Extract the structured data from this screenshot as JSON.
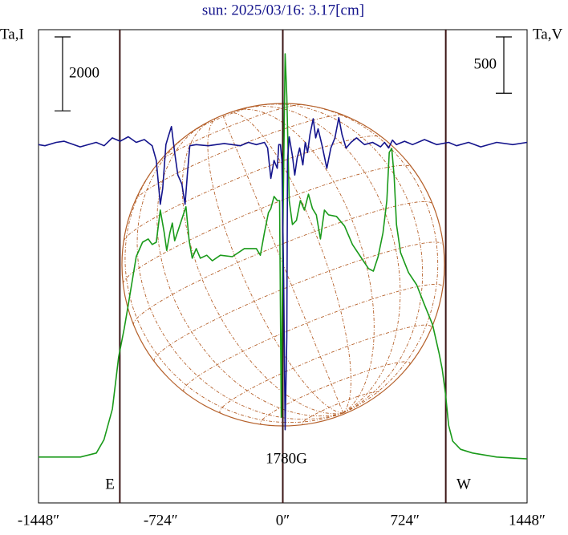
{
  "chart_data": {
    "type": "line",
    "title": "sun: 2025/03/16: 3.17[cm]",
    "y_label": "Ta,I",
    "y2_label": "Ta,V",
    "xlim": [
      -1448,
      1448
    ],
    "xticks": [
      {
        "value": -1448,
        "label": "-1448″"
      },
      {
        "value": -724,
        "label": "-724″"
      },
      {
        "value": 0,
        "label": "0″"
      },
      {
        "value": 724,
        "label": "724″"
      },
      {
        "value": 1448,
        "label": "1448″"
      }
    ],
    "ylim": [
      0,
      12800
    ],
    "y2lim": [
      -3200,
      1000
    ],
    "grid": false,
    "vlines": [
      -966,
      0,
      966
    ],
    "vline_color": "#3a1414",
    "scale_bars": [
      {
        "value": 2000,
        "axis": "y"
      },
      {
        "value": 500,
        "axis": "y2"
      }
    ],
    "annotations": [
      "E",
      "W",
      "1780G"
    ],
    "series": [
      {
        "color": "#1a9a1a",
        "axis": "y",
        "x": [
          -1448,
          -1200,
          -1105,
          -1060,
          -1010,
          -973,
          -940,
          -916,
          -869,
          -831,
          -798,
          -774,
          -750,
          -726,
          -703,
          -688,
          -669,
          -655,
          -641,
          -622,
          -593,
          -574,
          -555,
          -537,
          -513,
          -489,
          -451,
          -418,
          -370,
          -299,
          -228,
          -157,
          -133,
          -109,
          -85,
          -71,
          -52,
          -33,
          -19,
          -9,
          0,
          14,
          24,
          38,
          57,
          81,
          104,
          128,
          152,
          176,
          199,
          223,
          247,
          271,
          318,
          366,
          413,
          461,
          508,
          537,
          565,
          594,
          617,
          631,
          646,
          660,
          674,
          698,
          745,
          793,
          840,
          888,
          926,
          945,
          964,
          983,
          1007,
          1054,
          1125,
          1268,
          1448
        ],
        "values": [
          1240,
          1240,
          1350,
          1710,
          2540,
          3950,
          4710,
          5360,
          6660,
          7050,
          7140,
          6990,
          7050,
          7920,
          7310,
          6830,
          7310,
          7570,
          7090,
          7350,
          7750,
          8010,
          7090,
          6620,
          6880,
          6620,
          6700,
          6550,
          6700,
          6660,
          6880,
          6880,
          6700,
          7310,
          7850,
          7960,
          8290,
          8180,
          8180,
          2320,
          7090,
          12150,
          11000,
          8180,
          7530,
          7640,
          8180,
          7920,
          8350,
          7960,
          7790,
          7140,
          7920,
          7790,
          7750,
          7490,
          6990,
          6660,
          6340,
          6270,
          6660,
          7310,
          8180,
          9480,
          9590,
          8830,
          7530,
          6770,
          6230,
          5900,
          5360,
          4820,
          4060,
          3620,
          2970,
          2100,
          1670,
          1450,
          1350,
          1240,
          1190
        ]
      },
      {
        "color": "#14148c",
        "axis": "y2",
        "x": [
          -1448,
          -1410,
          -1343,
          -1296,
          -1201,
          -1106,
          -1059,
          -1011,
          -964,
          -916,
          -869,
          -821,
          -774,
          -750,
          -726,
          -712,
          -693,
          -679,
          -660,
          -641,
          -622,
          -598,
          -579,
          -565,
          -551,
          -513,
          -442,
          -347,
          -252,
          -204,
          -157,
          -109,
          -90,
          -71,
          -52,
          -33,
          -24,
          -14,
          -5,
          5,
          14,
          24,
          28,
          38,
          57,
          71,
          85,
          100,
          119,
          133,
          147,
          161,
          180,
          195,
          209,
          233,
          261,
          285,
          309,
          332,
          351,
          375,
          404,
          437,
          484,
          532,
          579,
          603,
          627,
          650,
          674,
          722,
          769,
          840,
          912,
          983,
          1030,
          1101,
          1173,
          1268,
          1363,
          1448
        ],
        "values": [
          -20,
          -30,
          0,
          10,
          -40,
          0,
          -30,
          40,
          10,
          50,
          0,
          25,
          -30,
          -160,
          -550,
          -410,
          -20,
          50,
          140,
          -90,
          -290,
          -370,
          -550,
          -270,
          -30,
          -20,
          -30,
          -10,
          -30,
          0,
          -20,
          0,
          -50,
          -320,
          -160,
          -230,
          -20,
          -20,
          -160,
          -1230,
          -2550,
          -1730,
          -160,
          50,
          -120,
          -290,
          -140,
          -50,
          -200,
          0,
          -90,
          70,
          210,
          40,
          120,
          -30,
          -230,
          -50,
          40,
          220,
          70,
          -50,
          0,
          40,
          -20,
          0,
          -40,
          0,
          -50,
          20,
          -20,
          10,
          -20,
          25,
          -20,
          0,
          -30,
          0,
          -40,
          0,
          -20,
          0
        ]
      }
    ]
  }
}
